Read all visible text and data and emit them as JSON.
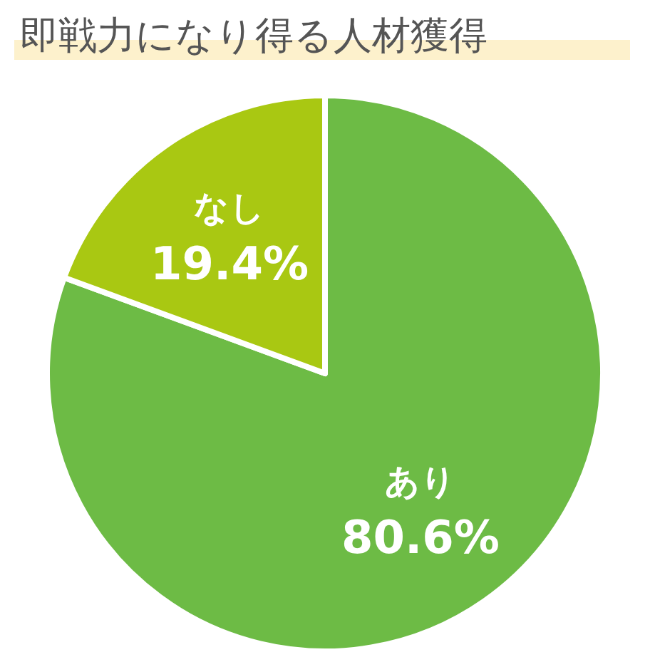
{
  "chart_data": {
    "type": "pie",
    "title": "即戦力になり得る人材獲得",
    "categories": [
      "あり",
      "なし"
    ],
    "values": [
      80.6,
      19.4
    ],
    "colors": [
      "#6dbb45",
      "#a9c812"
    ],
    "value_labels": [
      "80.6%",
      "19.4%"
    ]
  }
}
